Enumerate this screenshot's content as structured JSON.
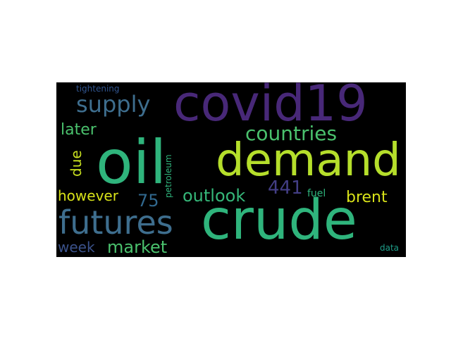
{
  "words": [
    {
      "id": "oil",
      "text": "oil",
      "color": "#2fb47c"
    },
    {
      "id": "crude",
      "text": "crude",
      "color": "#2fb47c"
    },
    {
      "id": "covid19",
      "text": "covid19",
      "color": "#482878"
    },
    {
      "id": "demand",
      "text": "demand",
      "color": "#b5de2b"
    },
    {
      "id": "futures",
      "text": "futures",
      "color": "#3e6e8e"
    },
    {
      "id": "supply",
      "text": "supply",
      "color": "#3e6e8e"
    },
    {
      "id": "countries",
      "text": "countries",
      "color": "#4ac16d"
    },
    {
      "id": "later",
      "text": "later",
      "color": "#4ac16d"
    },
    {
      "id": "due",
      "text": "due",
      "color": "#c8e020"
    },
    {
      "id": "outlook",
      "text": "outlook",
      "color": "#35b779"
    },
    {
      "id": "441",
      "text": "441",
      "color": "#433e85"
    },
    {
      "id": "75",
      "text": "75",
      "color": "#31688e"
    },
    {
      "id": "however",
      "text": "however",
      "color": "#d8e219"
    },
    {
      "id": "brent",
      "text": "brent",
      "color": "#d8e219"
    },
    {
      "id": "market",
      "text": "market",
      "color": "#4ac16d"
    },
    {
      "id": "week",
      "text": "week",
      "color": "#3b528b"
    },
    {
      "id": "tightening",
      "text": "tightening",
      "color": "#31558f"
    },
    {
      "id": "petroleum",
      "text": "petroleum",
      "color": "#2fb47c"
    },
    {
      "id": "fuel",
      "text": "fuel",
      "color": "#2fb47c"
    },
    {
      "id": "data",
      "text": "data",
      "color": "#1f9e89"
    }
  ]
}
